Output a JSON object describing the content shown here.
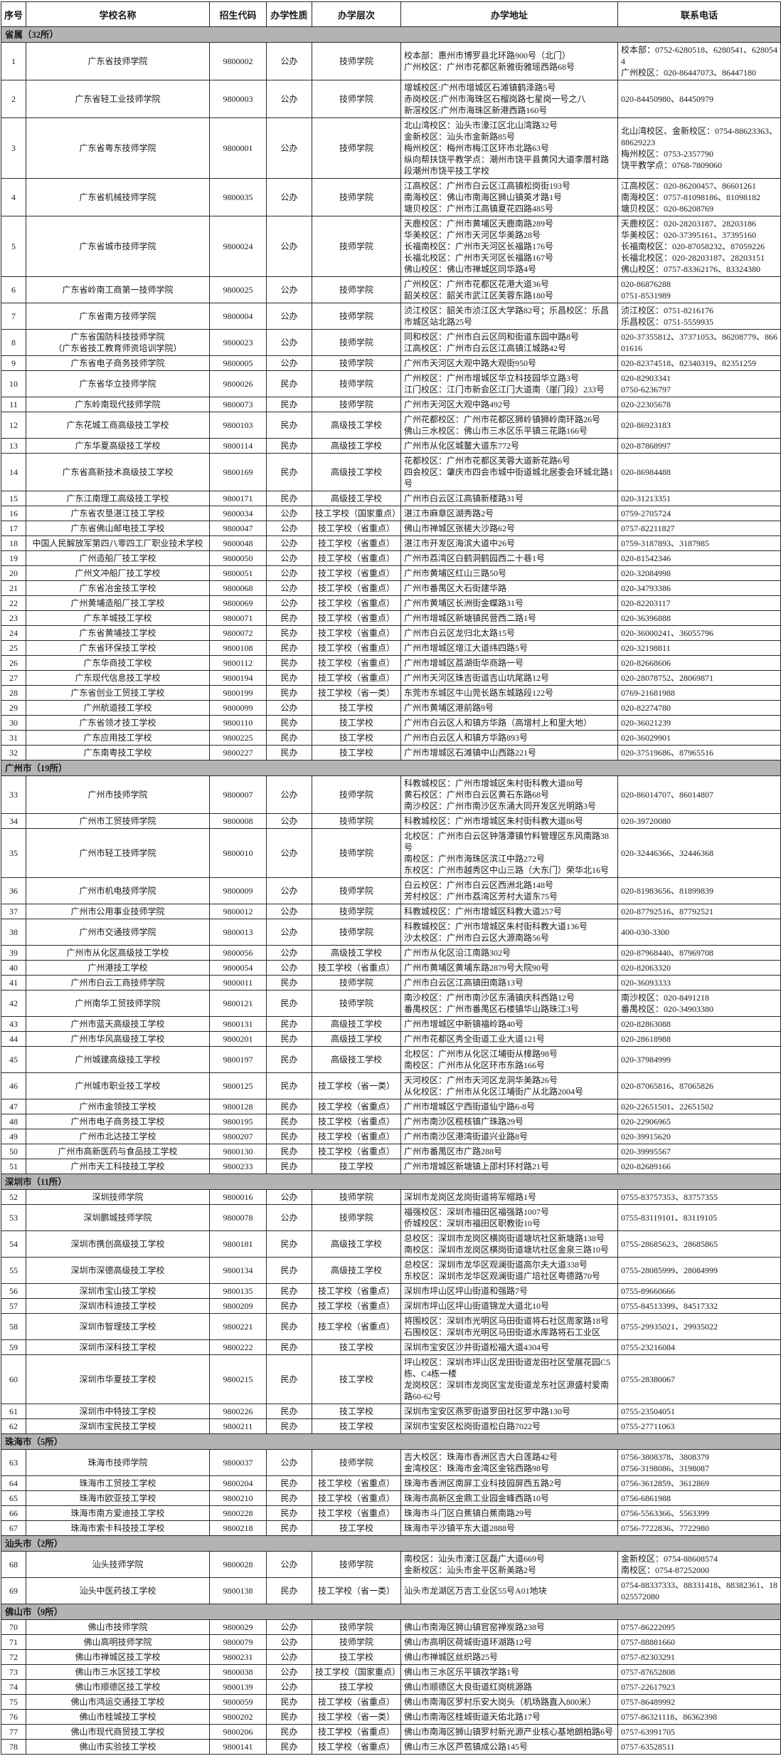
{
  "table": {
    "columns": [
      "序号",
      "学校名称",
      "招生代码",
      "办学性质",
      "办学层次",
      "办学地址",
      "联系电话"
    ],
    "sections": [
      {
        "label": "省属（32所）",
        "rows": [
          [
            "1",
            "广东省技师学院",
            "9800002",
            "公办",
            "技师学院",
            "校本部：惠州市博罗县北环路900号（北门）\n广州校区：广州市花都区新雅街雅瑶西路68号",
            "校本部：0752-6280518、6280541、6280544\n广州校区：020-86447073、86447180"
          ],
          [
            "2",
            "广东省轻工业技师学院",
            "9800003",
            "公办",
            "技师学院",
            "增城校区:广州市增城区石滩镇鹤泽路5号\n赤岗校区:广州市海珠区石榴岗路七星岗一号之八\n新滘校区:广州市海珠区新港西路160号",
            "020-84450980、84450979"
          ],
          [
            "3",
            "广东省粤东技师学院",
            "9800001",
            "公办",
            "技师学院",
            "北山湾校区：汕头市濠江区北山湾路32号\n金新校区：汕头市金新路85号\n梅州校区：梅州市梅江区环市北路63号\n纵向帮扶饶平教学点：潮州市饶平县黄冈大道李厝村路段潮州市饶平技工学校",
            "北山湾校区、金新校区：0754-88623363、88629223\n梅州校区：0753-2357790\n饶平教学点：0768-7809060"
          ],
          [
            "4",
            "广东省机械技师学院",
            "9800035",
            "公办",
            "技师学院",
            "江高校区：广州市白云区江高镇松岗街193号\n南海校区：佛山市南海区狮山镇英才路1号\n塘贝校区：广州市江高镇夏花四路485号",
            "江高校区：020-86200457、86601261\n南海校区：0757-81098186、81098182\n塘贝校区：020-86208769"
          ],
          [
            "5",
            "广东省城市技师学院",
            "9800024",
            "公办",
            "技师学院",
            "天鹿校区：广州市黄埔区天鹿南路289号\n华美校区：广州市天河区华美路28号\n长福南校区：广州市天河区长福路176号\n长福北校区：广州市天河区长福路167号\n佛山校区：佛山市禅城区同华路4号",
            "天鹿校区：020-28203187、28203186\n华美校区：020-37395161、37395160\n长福南校区：020-87058232、87059226\n长福北校区：020-28203187、28203151\n佛山校区：0757-83362176、83324380"
          ],
          [
            "6",
            "广东省岭南工商第一技师学院",
            "9800025",
            "公办",
            "技师学院",
            "广州校区：广州市花都区花港大道36号\n韶关校区：韶关市武江区芙蓉东路180号",
            "020-86876288\n0751-8531989"
          ],
          [
            "7",
            "广东省南方技师学院",
            "9800004",
            "公办",
            "技师学院",
            "浈江校区：韶关市浈江区大学路82号；乐昌校区：乐昌市城区站北路25号",
            "浈江校区：0751-8216176\n乐昌校区：0751-5559935"
          ],
          [
            "8",
            "广东省国防科技技师学院\n（广东省技工教育师资培训学院）",
            "9800023",
            "公办",
            "技师学院",
            "同和校区：广州市白云区同和街道东园中路8号\n江高校区：广州市白云区江高镇江城路42号",
            "020-37355812、37371053、86208779、86601616"
          ],
          [
            "9",
            "广东省电子商务技师学院",
            "9800005",
            "公办",
            "技师学院",
            "广州市天河区大观中路大观街950号",
            "020-82374518、82340319、82351259"
          ],
          [
            "10",
            "广东省华立技师学院",
            "9800026",
            "民办",
            "技师学院",
            "广州校区：广州市增城区华立科技园华立路3号\n江门校区：江门市新会区江门大道南（崖门段）233号",
            "020-82903341\n0750-6236797"
          ],
          [
            "11",
            "广东岭南现代技师学院",
            "9800073",
            "民办",
            "技师学院",
            "广州市天河区大观中路492号",
            "020-22305678"
          ],
          [
            "12",
            "广东花城工商高级技工学校",
            "9800103",
            "民办",
            "高级技工学校",
            "广州花都校区：广州市花都区狮岭镇狮岭南环路26号\n佛山三水校区：佛山市三水区乐平镇三花路166号",
            "020-86923183"
          ],
          [
            "13",
            "广东华夏高级技工学校",
            "9800114",
            "民办",
            "高级技工学校",
            "广州市从化区城鳌大道东772号",
            "020-87868997"
          ],
          [
            "14",
            "广东省高新技术高级技工学校",
            "9800169",
            "民办",
            "高级技工学校",
            "花都校区：广州市花都区芙蓉大道新花路6号\n四会校区：肇庆市四会市城中街道城北居委会环城北路1号",
            "020-86984488"
          ],
          [
            "15",
            "广东江南理工高级技工学校",
            "9800171",
            "民办",
            "高级技工学校",
            "广州市白云区江高镇新楼路31号",
            "020-31213351"
          ],
          [
            "16",
            "广东省农垦湛江技工学校",
            "9800034",
            "公办",
            "技工学校（国家重点）",
            "湛江市麻章区湖秀路2号",
            "0759-2705724"
          ],
          [
            "17",
            "广东省佛山邮电技工学校",
            "9800047",
            "公办",
            "技工学校（省重点）",
            "佛山市禅城区张槎大沙路62号",
            "0757-82211827"
          ],
          [
            "18",
            "中国人民解放军第四八零四工厂职业技术学校",
            "9800048",
            "公办",
            "技工学校（省重点）",
            "湛江市开发区海滨大道中26号",
            "0759-3187893、3187985"
          ],
          [
            "19",
            "广州造船厂技工学校",
            "9800050",
            "公办",
            "技工学校（省重点）",
            "广州市荔湾区白鹤洞鹤园西二十巷1号",
            "020-81542346"
          ],
          [
            "20",
            "广州文冲船厂技工学校",
            "9800051",
            "公办",
            "技工学校（省重点）",
            "广州市黄埔区红山三路50号",
            "020-32084998"
          ],
          [
            "21",
            "广东省冶金技工学校",
            "9800068",
            "公办",
            "技工学校（省重点）",
            "广州市番禺区大石街建华路",
            "020-34793386"
          ],
          [
            "22",
            "广州黄埔造船厂技工学校",
            "9800069",
            "公办",
            "技工学校（省重点）",
            "广州市黄埔区长洲街金蝶路31号",
            "020-82203117"
          ],
          [
            "23",
            "广东羊城技工学校",
            "9800071",
            "民办",
            "技工学校（省重点）",
            "广州市增城区新塘镇民营西二路1号",
            "020-36396888"
          ],
          [
            "24",
            "广东省黄埔技工学校",
            "9800072",
            "民办",
            "技工学校（省重点）",
            "广州市白云区龙归北太路15号",
            "020-36000241、36055796"
          ],
          [
            "25",
            "广东省环保技工学校",
            "9800108",
            "民办",
            "技工学校（省重点）",
            "广州市增城区增江大道纬四路5号",
            "020-32198811"
          ],
          [
            "26",
            "广东华商技工学校",
            "9800112",
            "民办",
            "技工学校（省重点）",
            "广州市增城区荔湖街华商路一号",
            "020-82668606"
          ],
          [
            "27",
            "广东现代信息技工学校",
            "9800194",
            "民办",
            "技工学校（省重点）",
            "广州市天河区珠吉街道吉山坑尾路12号",
            "020-28078752、28069871"
          ],
          [
            "28",
            "广东省创业工贸技工学校",
            "9800199",
            "民办",
            "技工学校（省一类）",
            "东莞市东城区牛山莞长路东城路段122号",
            "0769-21681988"
          ],
          [
            "29",
            "广州航道技工学校",
            "9800099",
            "公办",
            "技工学校",
            "广州市黄埔区港前路9号",
            "020-82274780"
          ],
          [
            "30",
            "广东省领才技工学校",
            "9800110",
            "民办",
            "技工学校",
            "广州市白云区人和镇方华路（高增村上和里大地）",
            "020-36021239"
          ],
          [
            "31",
            "广东应用技工学校",
            "9800225",
            "民办",
            "技工学校",
            "广州市白云区人和镇方华路893号",
            "020-36029901"
          ],
          [
            "32",
            "广东南粤技工学校",
            "9800227",
            "民办",
            "技工学校",
            "广州市增城区石滩镇中山西路221号",
            "020-37519686、87965516"
          ]
        ]
      },
      {
        "label": "广州市（19所）",
        "rows": [
          [
            "33",
            "广州市技师学院",
            "9800007",
            "公办",
            "技师学院",
            "科教城校区：广州市增城区朱村街科教大道88号\n黄石校区：广州市白云区黄石东路68号\n南沙校区：广州市南沙区东涌大同开发区光明路3号",
            "020-86014707、86014807"
          ],
          [
            "34",
            "广州市工贸技师学院",
            "9800008",
            "公办",
            "技师学院",
            "科教城校区：广州市增城区朱村街科教大道86号",
            "020-39720080"
          ],
          [
            "35",
            "广州市轻工技师学院",
            "9800010",
            "公办",
            "技师学院",
            "北校区：广州市白云区钟落潭镇竹料管理区东风南路38号\n南校区：广州市海珠区滨江中路272号\n东校区：广州市越秀区中山三路（大东门）荣华北16号",
            "020-32446366、32446368"
          ],
          [
            "36",
            "广州市机电技师学院",
            "9800009",
            "公办",
            "技师学院",
            "白云校区：广州市白云区西洲北路148号\n芳村校区：广州市荔湾区芳村大道东75号",
            "020-81983656、81899839"
          ],
          [
            "37",
            "广州市公用事业技师学院",
            "9800012",
            "公办",
            "技师学院",
            "科教城校区：广州市增城区科教大道257号",
            "020-87792516、87792521"
          ],
          [
            "38",
            "广州市交通技师学院",
            "9800013",
            "公办",
            "技师学院",
            "科教城校区：广州市增城区朱村街科教大道136号\n沙太校区：广州市白云区大源南路56号",
            "400-030-3300"
          ],
          [
            "39",
            "广州市从化区高级技工学校",
            "9800056",
            "公办",
            "高级技工学校",
            "广州市从化区沿江南路302号",
            "020-87968440、87969708"
          ],
          [
            "40",
            "广州港技工学校",
            "9800054",
            "公办",
            "技工学校（省重点）",
            "广州市黄埔区黄埔东路2879号大院90号",
            "020-82063320"
          ],
          [
            "41",
            "广州市白云工商技师学院",
            "9800011",
            "民办",
            "技师学院",
            "广州市白云区江高镇田南路13号",
            "020-36093333"
          ],
          [
            "42",
            "广州南华工贸技师学院",
            "9800121",
            "民办",
            "技师学院",
            "南沙校区：广州市南沙区东涌镇庆科西路12号\n番禺校区：广州市番禺区石楼镇华山路珠江3号",
            "南沙校区：020-8491218\n番禺校区：020-34903380"
          ],
          [
            "43",
            "广州市蓝天高级技工学校",
            "9800131",
            "民办",
            "高级技工学校",
            "广州市增城区中新镇福岭路40号",
            "020-82863088"
          ],
          [
            "44",
            "广州市华风高级技工学校",
            "9800201",
            "民办",
            "高级技工学校",
            "广州市花都区秀全街道工业大道121号",
            "020-28618988"
          ],
          [
            "45",
            "广州城建高级技工学校",
            "9800197",
            "民办",
            "高级技工学校",
            "北校区：广州市从化区江埔街从樟路98号\n南校区：广州市从化区环市东路166号",
            "020-37984999"
          ],
          [
            "46",
            "广州城市职业技工学校",
            "9800125",
            "民办",
            "技工学校（省一类）",
            "天河校区：广州市天河区龙洞华美路26号\n从化校区：广州市从化区江埔街广从北路2004号",
            "020-87065816、87065826"
          ],
          [
            "47",
            "广州市金领技工学校",
            "9800128",
            "民办",
            "技工学校（省重点）",
            "广州市增城区宁西街道仙宁路6-8号",
            "020-22651501、22651502"
          ],
          [
            "48",
            "广州市电子商务技工学校",
            "9800195",
            "民办",
            "技工学校（省重点）",
            "广州市南沙区榄核镇广珠路29号",
            "020-22906965"
          ],
          [
            "49",
            "广州市北达技工学校",
            "9800207",
            "民办",
            "技工学校（省重点）",
            "广州市南沙区港湾街道兴业路8号",
            "020-39915620"
          ],
          [
            "50",
            "广州市高新医药与食品技工学校",
            "9800130",
            "民办",
            "技工学校（省重点）",
            "广州市番禺区市广路288号",
            "020-39995567"
          ],
          [
            "51",
            "广州市天工科技技工学校",
            "9800233",
            "民办",
            "技工学校",
            "广州市增城区新塘镇上邵村环村路21号",
            "020-82689166"
          ]
        ]
      },
      {
        "label": "深圳市（11所）",
        "rows": [
          [
            "52",
            "深圳技师学院",
            "9800016",
            "公办",
            "技师学院",
            "深圳市龙岗区龙岗街道将军帽路1号",
            "0755-83757353、83757355"
          ],
          [
            "53",
            "深圳鹏城技师学院",
            "9800078",
            "公办",
            "技师学院",
            "福强校区：深圳市福田区福强路1007号\n侨城校区：深圳市福田区职教街10号",
            "0755-83119101、83119105"
          ],
          [
            "54",
            "深圳市携创高级技工学校",
            "9800181",
            "民办",
            "高级技工学校",
            "总校区：深圳市龙岗区横岗街道塘坑社区新塘路138号\n南校区：深圳市龙岗区横岗街道塘坑社区金泉三路10号",
            "0755-28685623、28685865"
          ],
          [
            "55",
            "深圳市深德高级技工学校",
            "9800134",
            "民办",
            "高级技工学校",
            "总校区：深圳市龙华区观澜街道高尔夫大道338号\n东校区：深圳市龙华区观澜街道广培社区粤德路70号",
            "0755-28085999、28084999"
          ],
          [
            "56",
            "深圳市宝山技工学校",
            "9800135",
            "民办",
            "技工学校（省重点）",
            "深圳市坪山区坪山街道和强路7号",
            "0755-89660666"
          ],
          [
            "57",
            "深圳市科迪技工学校",
            "9800209",
            "民办",
            "技工学校（省重点）",
            "深圳市坪山区坪山街道锦龙大道北10号",
            "0755-84513399、84517332"
          ],
          [
            "58",
            "深圳市智理技工学校",
            "9800221",
            "民办",
            "技工学校（省重点）",
            "将围校区：深圳市光明区马田街道将石社区周家路18号\n石围校区：深圳市光明区马田街道水库路将石工业区",
            "0755-29935021、29935022"
          ],
          [
            "59",
            "深圳市深科技工学校",
            "9800222",
            "民办",
            "技工学校",
            "深圳市宝安区沙井街道松福大道4304号",
            "0755-23216084"
          ],
          [
            "60",
            "深圳市华夏技工学校",
            "9800215",
            "民办",
            "技工学校",
            "坪山校区：深圳市坪山区龙田街道龙田社区莹展花园C5栋、C4栋一楼\n龙岗校区：深圳市龙岗区宝龙街道龙东社区源盛村爱南路60-62号",
            "0755-28380067"
          ],
          [
            "61",
            "深圳市中特技工学校",
            "9800226",
            "民办",
            "技工学校",
            "深圳市宝安区燕罗街道罗田社区罗中路130号",
            "0755-23504051"
          ],
          [
            "62",
            "深圳市宝民技工学校",
            "9800211",
            "民办",
            "技工学校",
            "深圳市宝安区松岗街道松白路7022号",
            "0755-27711063"
          ]
        ]
      },
      {
        "label": "珠海市（5所）",
        "rows": [
          [
            "63",
            "珠海市技师学院",
            "9800037",
            "公办",
            "技师学院",
            "吉大校区：珠海市香洲区吉大白莲路42号\n金湾校区：珠海市金湾区金铭西路98号",
            "0756-3808378、3808379\n0756-3198086、3198087"
          ],
          [
            "64",
            "珠海市工贸技工学校",
            "9800204",
            "民办",
            "技工学校（省重点）",
            "珠海市香洲区南屏工业科技园屏西五路2号",
            "0756-3612859、3612869"
          ],
          [
            "65",
            "珠海市欧亚技工学校",
            "9800210",
            "民办",
            "技工学校（省重点）",
            "珠海市高新区金鼎工业园金峰西路10号",
            "0756-6861988"
          ],
          [
            "66",
            "珠海市南方爱迪技工学校",
            "9800228",
            "民办",
            "技工学校（省重点）",
            "珠海市斗门区白蕉镇白蕉南路29号",
            "0756-5563366、5563399"
          ],
          [
            "67",
            "珠海市索卡科技技工学校",
            "9800218",
            "民办",
            "技工学校",
            "珠海市平沙镇平东大道2888号",
            "0756-7722836、7722980"
          ]
        ]
      },
      {
        "label": "汕头市（2所）",
        "rows": [
          [
            "68",
            "汕头技师学院",
            "9800028",
            "公办",
            "技师学院",
            "南校区：汕头市濠江区磊广大道669号\n金新校区：汕头市金平区新美路2号",
            "金新校区：0754-88608574\n南校区：0754-87252000"
          ],
          [
            "69",
            "汕头中医药技工学校",
            "9800138",
            "民办",
            "技工学校（省一类）",
            "汕头市龙湖区万吉工业区55号A01地块",
            "0754-88337333、88331418、88382361、18025572080"
          ]
        ]
      },
      {
        "label": "佛山市（9所）",
        "rows": [
          [
            "70",
            "佛山市技师学院",
            "9800029",
            "公办",
            "技师学院",
            "佛山市南海区狮山镇官窑禅炭路238号",
            "0757-86222095"
          ],
          [
            "71",
            "佛山高明技师学院",
            "9800079",
            "公办",
            "技师学院",
            "佛山市高明区荷城街道环湖路12号",
            "0757-88881660"
          ],
          [
            "72",
            "佛山市禅城区技工学校",
            "9800231",
            "公办",
            "技工学校",
            "佛山市禅城区丝织路25号",
            "0757-82303291"
          ],
          [
            "73",
            "佛山市三水区技工学校",
            "9800038",
            "公办",
            "技工学校（国家重点）",
            "佛山市三水区乐平镇孜学路1号",
            "0757-87652808"
          ],
          [
            "74",
            "佛山市顺德区技工学校",
            "9800139",
            "公办",
            "技工学校",
            "佛山市顺德区大良街道红岗桃源路",
            "0757-22617923"
          ],
          [
            "75",
            "佛山市鸿运交通技工学校",
            "9800059",
            "民办",
            "技工学校（省重点）",
            "佛山市南海区罗村乐安大岗头（机场路直入800米）",
            "0757-86489992"
          ],
          [
            "76",
            "佛山市桂城技工学校",
            "9800202",
            "民办",
            "技工学校（省一类）",
            "佛山市南海区桂城街道天佑北路17号",
            "0757-86321118、86362398"
          ],
          [
            "77",
            "佛山市现代商贸技工学校",
            "9800206",
            "民办",
            "技工学校（省重点）",
            "佛山市南海区狮山镇罗村新光源产业核心基地朗柏路6号",
            "0757-63991705"
          ],
          [
            "78",
            "佛山市实验技工学校",
            "9800141",
            "民办",
            "技工学校（省重点）",
            "佛山市三水区芦苞镇成公路145号",
            "0757-63528511"
          ]
        ]
      }
    ]
  }
}
